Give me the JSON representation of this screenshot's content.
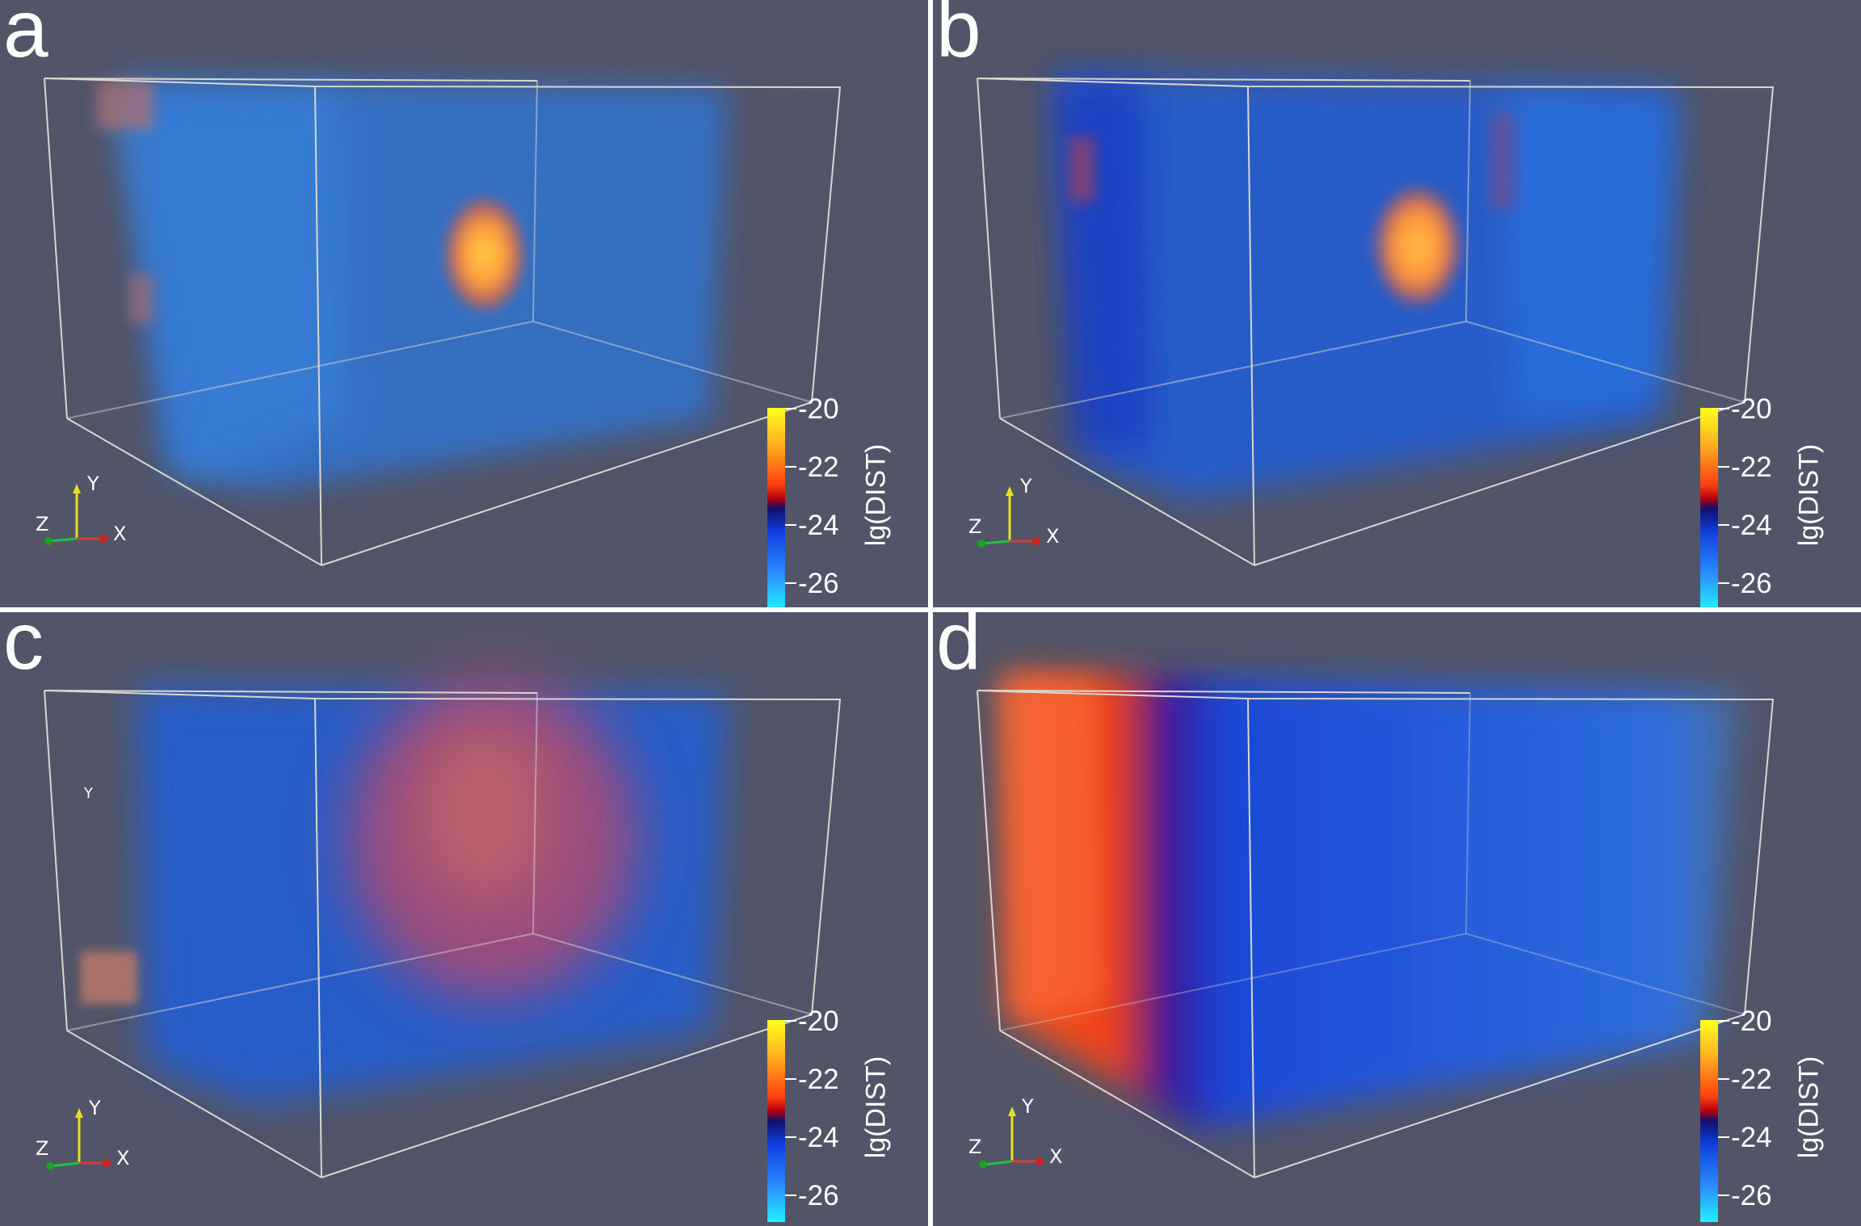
{
  "panels": [
    {
      "letter": "a",
      "variant": "localized-sphere"
    },
    {
      "letter": "b",
      "variant": "localized-sphere-blurred"
    },
    {
      "letter": "c",
      "variant": "diffuse"
    },
    {
      "letter": "d",
      "variant": "left-boundary"
    }
  ],
  "axes": {
    "x": "X",
    "y": "Y",
    "z": "Z"
  },
  "floating_label": "Y",
  "colorbar": {
    "title": "lg(DIST)",
    "ticks": [
      "-20",
      "-22",
      "-24",
      "-26"
    ],
    "colors": [
      "#ffff20",
      "#ff4010",
      "#101070",
      "#1040e0",
      "#22f0ff"
    ]
  },
  "background_color": "#525468",
  "box_color": "#d8d8d0"
}
